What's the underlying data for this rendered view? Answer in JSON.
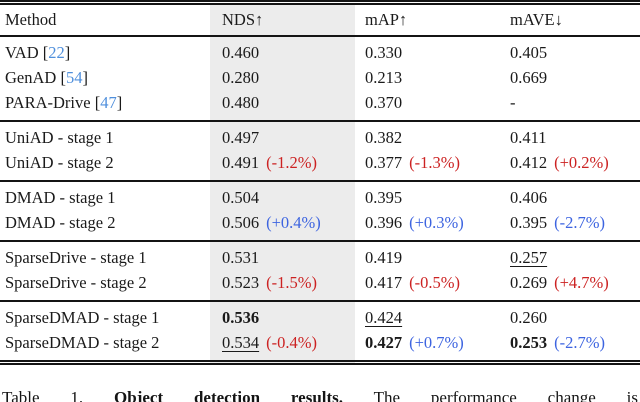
{
  "table": {
    "header": {
      "method": "Method",
      "nds": "NDS↑",
      "map": "mAP↑",
      "mave": "mAVE↓"
    },
    "cite_bracket_open": "[",
    "cite_bracket_close": "]",
    "colors": {
      "highlight": "#ECECEC",
      "negative_red": "#CC2222",
      "positive_blue": "#3D64E0",
      "citation_blue": "#4F8FDC"
    },
    "sections": [
      {
        "rows": [
          {
            "method": "VAD",
            "cite": "22",
            "cells": [
              {
                "value": "0.460"
              },
              {
                "value": "0.330"
              },
              {
                "value": "0.405"
              }
            ]
          },
          {
            "method": "GenAD",
            "cite": "54",
            "cells": [
              {
                "value": "0.280"
              },
              {
                "value": "0.213"
              },
              {
                "value": "0.669"
              }
            ]
          },
          {
            "method": "PARA-Drive",
            "cite": "47",
            "cells": [
              {
                "value": "0.480"
              },
              {
                "value": "0.370"
              },
              {
                "value": "-"
              }
            ]
          }
        ]
      },
      {
        "rows": [
          {
            "method": "UniAD - stage 1",
            "cells": [
              {
                "value": "0.497"
              },
              {
                "value": "0.382"
              },
              {
                "value": "0.411"
              }
            ]
          },
          {
            "method": "UniAD - stage 2",
            "cells": [
              {
                "value": "0.491",
                "change": "(-1.2%)",
                "change_color": "red"
              },
              {
                "value": "0.377",
                "change": "(-1.3%)",
                "change_color": "red"
              },
              {
                "value": "0.412",
                "change": "(+0.2%)",
                "change_color": "red"
              }
            ]
          }
        ]
      },
      {
        "rows": [
          {
            "method": "DMAD - stage 1",
            "cells": [
              {
                "value": "0.504"
              },
              {
                "value": "0.395"
              },
              {
                "value": "0.406"
              }
            ]
          },
          {
            "method": "DMAD - stage 2",
            "cells": [
              {
                "value": "0.506",
                "change": "(+0.4%)",
                "change_color": "blue"
              },
              {
                "value": "0.396",
                "change": "(+0.3%)",
                "change_color": "blue"
              },
              {
                "value": "0.395",
                "change": "(-2.7%)",
                "change_color": "blue"
              }
            ]
          }
        ]
      },
      {
        "rows": [
          {
            "method": "SparseDrive - stage 1",
            "cells": [
              {
                "value": "0.531"
              },
              {
                "value": "0.419"
              },
              {
                "value": "0.257",
                "underline": true
              }
            ]
          },
          {
            "method": "SparseDrive - stage 2",
            "cells": [
              {
                "value": "0.523",
                "change": "(-1.5%)",
                "change_color": "red"
              },
              {
                "value": "0.417",
                "change": "(-0.5%)",
                "change_color": "red"
              },
              {
                "value": "0.269",
                "change": "(+4.7%)",
                "change_color": "red"
              }
            ]
          }
        ]
      },
      {
        "rows": [
          {
            "method": "SparseDMAD - stage 1",
            "cells": [
              {
                "value": "0.536",
                "bold": true
              },
              {
                "value": "0.424",
                "underline": true
              },
              {
                "value": "0.260"
              }
            ]
          },
          {
            "method": "SparseDMAD - stage 2",
            "cells": [
              {
                "value": "0.534",
                "underline": true,
                "change": "(-0.4%)",
                "change_color": "red"
              },
              {
                "value": "0.427",
                "bold": true,
                "change": "(+0.7%)",
                "change_color": "blue"
              },
              {
                "value": "0.253",
                "bold": true,
                "change": "(-2.7%)",
                "change_color": "blue"
              }
            ]
          }
        ]
      }
    ]
  },
  "caption": {
    "prefix": "Table 1.",
    "title": "Object detection results.",
    "rest": "The performance change is"
  }
}
